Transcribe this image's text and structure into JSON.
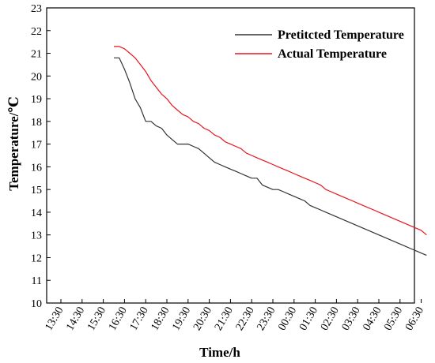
{
  "chart_data": {
    "type": "line",
    "xlabel": "Time/h",
    "ylabel": "Temperature/℃",
    "x_ticks": [
      "13:30",
      "14:30",
      "15:30",
      "16:30",
      "17:30",
      "18:30",
      "19:30",
      "20:30",
      "21:30",
      "22:30",
      "23:30",
      "00:30",
      "01:30",
      "02:30",
      "03:30",
      "04:30",
      "05:30",
      "06:30"
    ],
    "y_ticks": [
      "10",
      "11",
      "12",
      "13",
      "14",
      "15",
      "16",
      "17",
      "18",
      "19",
      "20",
      "21",
      "22",
      "23"
    ],
    "ylim": [
      10,
      23
    ],
    "grid": false,
    "legend": "top-right",
    "series": [
      {
        "name": "Pretitcted Temperature",
        "color": "#333333",
        "x": [
          "16:00",
          "16:15",
          "16:30",
          "16:45",
          "17:00",
          "17:15",
          "17:30",
          "17:45",
          "18:00",
          "18:15",
          "18:30",
          "18:45",
          "19:00",
          "19:15",
          "19:30",
          "19:45",
          "20:00",
          "20:15",
          "20:30",
          "20:45",
          "21:00",
          "21:15",
          "21:30",
          "21:45",
          "22:00",
          "22:15",
          "22:30",
          "22:45",
          "23:00",
          "23:15",
          "23:30",
          "23:45",
          "00:00",
          "00:15",
          "00:30",
          "00:45",
          "01:00",
          "01:15",
          "01:30",
          "01:45",
          "02:00",
          "02:15",
          "02:30",
          "02:45",
          "03:00",
          "03:15",
          "03:30",
          "03:45",
          "04:00",
          "04:15",
          "04:30",
          "04:45",
          "05:00",
          "05:15",
          "05:30",
          "05:45",
          "06:00",
          "06:15",
          "06:30",
          "06:45"
        ],
        "values": [
          20.8,
          20.8,
          20.3,
          19.7,
          19.0,
          18.6,
          18.0,
          18.0,
          17.8,
          17.7,
          17.4,
          17.2,
          17.0,
          17.0,
          17.0,
          16.9,
          16.8,
          16.6,
          16.4,
          16.2,
          16.1,
          16.0,
          15.9,
          15.8,
          15.7,
          15.6,
          15.5,
          15.5,
          15.2,
          15.1,
          15.0,
          15.0,
          14.9,
          14.8,
          14.7,
          14.6,
          14.5,
          14.3,
          14.2,
          14.1,
          14.0,
          13.9,
          13.8,
          13.7,
          13.6,
          13.5,
          13.4,
          13.3,
          13.2,
          13.1,
          13.0,
          12.9,
          12.8,
          12.7,
          12.6,
          12.5,
          12.4,
          12.3,
          12.2,
          12.1
        ]
      },
      {
        "name": "Actual Temperature",
        "color": "#e8151b",
        "x": [
          "16:00",
          "16:15",
          "16:30",
          "16:45",
          "17:00",
          "17:15",
          "17:30",
          "17:45",
          "18:00",
          "18:15",
          "18:30",
          "18:45",
          "19:00",
          "19:15",
          "19:30",
          "19:45",
          "20:00",
          "20:15",
          "20:30",
          "20:45",
          "21:00",
          "21:15",
          "21:30",
          "21:45",
          "22:00",
          "22:15",
          "22:30",
          "22:45",
          "23:00",
          "23:15",
          "23:30",
          "23:45",
          "00:00",
          "00:15",
          "00:30",
          "00:45",
          "01:00",
          "01:15",
          "01:30",
          "01:45",
          "02:00",
          "02:15",
          "02:30",
          "02:45",
          "03:00",
          "03:15",
          "03:30",
          "03:45",
          "04:00",
          "04:15",
          "04:30",
          "04:45",
          "05:00",
          "05:15",
          "05:30",
          "05:45",
          "06:00",
          "06:15",
          "06:30",
          "06:45"
        ],
        "values": [
          21.3,
          21.3,
          21.2,
          21.0,
          20.8,
          20.5,
          20.2,
          19.8,
          19.5,
          19.2,
          19.0,
          18.7,
          18.5,
          18.3,
          18.2,
          18.0,
          17.9,
          17.7,
          17.6,
          17.4,
          17.3,
          17.1,
          17.0,
          16.9,
          16.8,
          16.6,
          16.5,
          16.4,
          16.3,
          16.2,
          16.1,
          16.0,
          15.9,
          15.8,
          15.7,
          15.6,
          15.5,
          15.4,
          15.3,
          15.2,
          15.0,
          14.9,
          14.8,
          14.7,
          14.6,
          14.5,
          14.4,
          14.3,
          14.2,
          14.1,
          14.0,
          13.9,
          13.8,
          13.7,
          13.6,
          13.5,
          13.4,
          13.3,
          13.2,
          13.0
        ]
      }
    ],
    "legend_entries": [
      {
        "label": "Pretitcted Temperature"
      },
      {
        "label": "Actual Temperature"
      }
    ]
  }
}
